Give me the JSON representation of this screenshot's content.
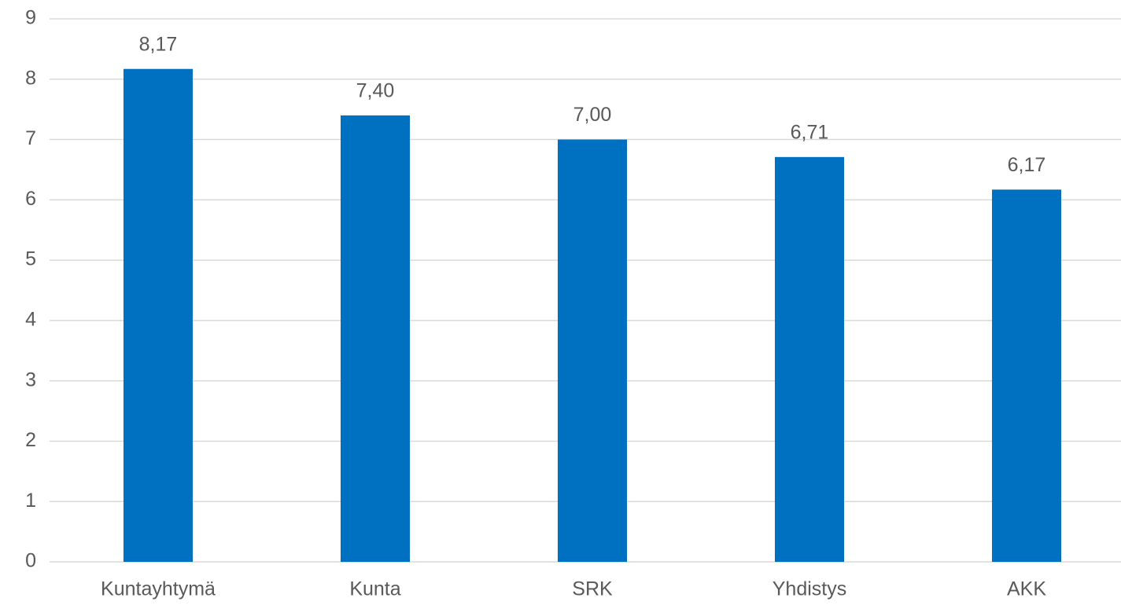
{
  "chart_data": {
    "type": "bar",
    "categories": [
      "Kuntayhtymä",
      "Kunta",
      "SRK",
      "Yhdistys",
      "AKK"
    ],
    "values": [
      8.17,
      7.4,
      7.0,
      6.71,
      6.17
    ],
    "value_labels": [
      "8,17",
      "7,40",
      "7,00",
      "6,71",
      "6,17"
    ],
    "color": "#0070c0",
    "ylim": [
      0,
      9
    ],
    "yticks": [
      0,
      1,
      2,
      3,
      4,
      5,
      6,
      7,
      8,
      9
    ],
    "grid": true
  }
}
